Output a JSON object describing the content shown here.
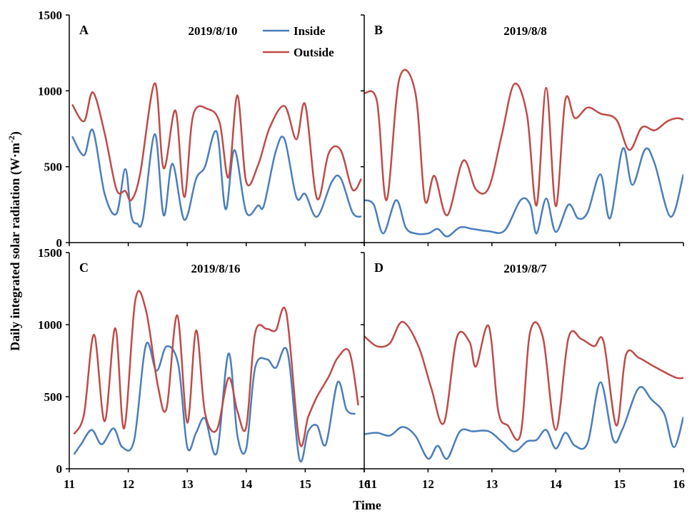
{
  "chart_data": {
    "type": "line",
    "ylabel": "Daily integrated solar radiation (W·m-2)",
    "ylabel_main": "Daily integrated solar radiation (W·m",
    "ylabel_sup": "-2",
    "ylabel_close": ")",
    "xlabel": "Time",
    "legend": {
      "inside": "Inside",
      "outside": "Outside"
    },
    "colors": {
      "inside": "#4a7ebb",
      "outside": "#be4b48"
    },
    "ylim": [
      0,
      1500
    ],
    "yticks": [
      "0",
      "500",
      "1000",
      "1500"
    ],
    "xlim": [
      11,
      16
    ],
    "xticks": [
      "11",
      "12",
      "13",
      "14",
      "15",
      "16"
    ],
    "panels": [
      {
        "id": "A",
        "letter": "A",
        "date": "2019/8/10",
        "series": [
          {
            "name": "Inside",
            "x": [
              11.05,
              11.25,
              11.4,
              11.6,
              11.8,
              11.95,
              12.05,
              12.15,
              12.25,
              12.45,
              12.6,
              12.75,
              12.95,
              13.15,
              13.3,
              13.5,
              13.65,
              13.8,
              14.0,
              14.2,
              14.3,
              14.5,
              14.65,
              14.85,
              15.0,
              15.2,
              15.45,
              15.6,
              15.8,
              15.95
            ],
            "y": [
              700,
              575,
              740,
              320,
              190,
              485,
              180,
              125,
              160,
              715,
              180,
              520,
              150,
              420,
              500,
              730,
              220,
              610,
              200,
              245,
              245,
              600,
              680,
              300,
              320,
              170,
              400,
              425,
              200,
              170
            ]
          },
          {
            "name": "Outside",
            "x": [
              11.05,
              11.25,
              11.4,
              11.6,
              11.8,
              11.95,
              12.05,
              12.2,
              12.45,
              12.6,
              12.8,
              12.95,
              13.1,
              13.35,
              13.55,
              13.7,
              13.85,
              14.0,
              14.2,
              14.4,
              14.65,
              14.85,
              15.0,
              15.2,
              15.4,
              15.6,
              15.8,
              15.95
            ],
            "y": [
              910,
              800,
              990,
              720,
              350,
              340,
              280,
              450,
              1050,
              490,
              870,
              300,
              840,
              880,
              790,
              430,
              970,
              400,
              510,
              760,
              900,
              680,
              910,
              290,
              590,
              610,
              350,
              420
            ]
          }
        ]
      },
      {
        "id": "B",
        "letter": "B",
        "date": "2019/8/8",
        "series": [
          {
            "name": "Inside",
            "x": [
              11.0,
              11.15,
              11.3,
              11.5,
              11.65,
              11.8,
              12.0,
              12.15,
              12.3,
              12.5,
              12.7,
              12.95,
              13.2,
              13.45,
              13.6,
              13.7,
              13.85,
              14.0,
              14.2,
              14.35,
              14.5,
              14.7,
              14.85,
              15.05,
              15.2,
              15.4,
              15.55,
              15.8,
              16.0
            ],
            "y": [
              280,
              250,
              60,
              280,
              100,
              60,
              60,
              90,
              40,
              100,
              90,
              75,
              80,
              280,
              250,
              60,
              290,
              70,
              250,
              160,
              200,
              450,
              160,
              620,
              380,
              615,
              520,
              170,
              450
            ]
          },
          {
            "name": "Outside",
            "x": [
              11.0,
              11.2,
              11.35,
              11.55,
              11.8,
              11.95,
              12.1,
              12.3,
              12.55,
              12.75,
              12.95,
              13.15,
              13.35,
              13.55,
              13.7,
              13.85,
              14.0,
              14.15,
              14.3,
              14.5,
              14.7,
              14.95,
              15.15,
              15.35,
              15.55,
              15.75,
              15.9,
              16.0
            ],
            "y": [
              985,
              930,
              280,
              1080,
              990,
              280,
              440,
              180,
              540,
              350,
              360,
              700,
              1045,
              840,
              245,
              1020,
              240,
              940,
              820,
              890,
              850,
              810,
              610,
              760,
              740,
              800,
              820,
              810
            ]
          }
        ]
      },
      {
        "id": "C",
        "letter": "C",
        "date": "2019/8/16",
        "series": [
          {
            "name": "Inside",
            "x": [
              11.08,
              11.2,
              11.38,
              11.55,
              11.75,
              11.9,
              12.1,
              12.3,
              12.48,
              12.65,
              12.85,
              13.0,
              13.15,
              13.3,
              13.5,
              13.7,
              13.85,
              14.0,
              14.15,
              14.35,
              14.5,
              14.7,
              14.9,
              15.05,
              15.2,
              15.35,
              15.55,
              15.7,
              15.85
            ],
            "y": [
              100,
              170,
              270,
              170,
              280,
              150,
              200,
              860,
              680,
              850,
              720,
              150,
              250,
              350,
              110,
              800,
              230,
              140,
              700,
              760,
              700,
              810,
              70,
              260,
              300,
              170,
              600,
              410,
              380
            ]
          },
          {
            "name": "Outside",
            "x": [
              11.08,
              11.25,
              11.42,
              11.6,
              11.78,
              11.93,
              12.12,
              12.3,
              12.5,
              12.65,
              12.83,
              13.0,
              13.15,
              13.3,
              13.5,
              13.7,
              13.85,
              14.0,
              14.15,
              14.35,
              14.5,
              14.68,
              14.9,
              15.05,
              15.2,
              15.4,
              15.55,
              15.75,
              15.9
            ],
            "y": [
              240,
              380,
              930,
              330,
              975,
              280,
              1170,
              1100,
              580,
              420,
              1065,
              320,
              960,
              390,
              270,
              630,
              400,
              290,
              940,
              970,
              960,
              1080,
              190,
              360,
              500,
              640,
              770,
              810,
              440
            ]
          }
        ]
      },
      {
        "id": "D",
        "letter": "D",
        "date": "2019/8/7",
        "series": [
          {
            "name": "Inside",
            "x": [
              11.0,
              11.2,
              11.4,
              11.6,
              11.8,
              12.0,
              12.15,
              12.3,
              12.5,
              12.7,
              12.95,
              13.15,
              13.35,
              13.55,
              13.7,
              13.85,
              14.0,
              14.15,
              14.3,
              14.5,
              14.7,
              14.9,
              15.05,
              15.3,
              15.5,
              15.7,
              15.85,
              16.0
            ],
            "y": [
              240,
              250,
              230,
              290,
              230,
              70,
              160,
              70,
              260,
              260,
              260,
              190,
              120,
              190,
              200,
              270,
              140,
              250,
              160,
              180,
              600,
              200,
              280,
              560,
              480,
              380,
              150,
              360
            ]
          },
          {
            "name": "Outside",
            "x": [
              11.0,
              11.2,
              11.4,
              11.6,
              11.85,
              12.05,
              12.25,
              12.45,
              12.65,
              12.75,
              12.95,
              13.1,
              13.25,
              13.45,
              13.6,
              13.8,
              14.0,
              14.2,
              14.4,
              14.6,
              14.75,
              14.95,
              15.1,
              15.3,
              15.5,
              15.75,
              15.9,
              16.0
            ],
            "y": [
              920,
              850,
              870,
              1020,
              850,
              560,
              320,
              910,
              880,
              710,
              990,
              400,
              300,
              240,
              950,
              910,
              270,
              910,
              900,
              850,
              880,
              300,
              790,
              770,
              720,
              660,
              630,
              630
            ]
          }
        ]
      }
    ]
  }
}
